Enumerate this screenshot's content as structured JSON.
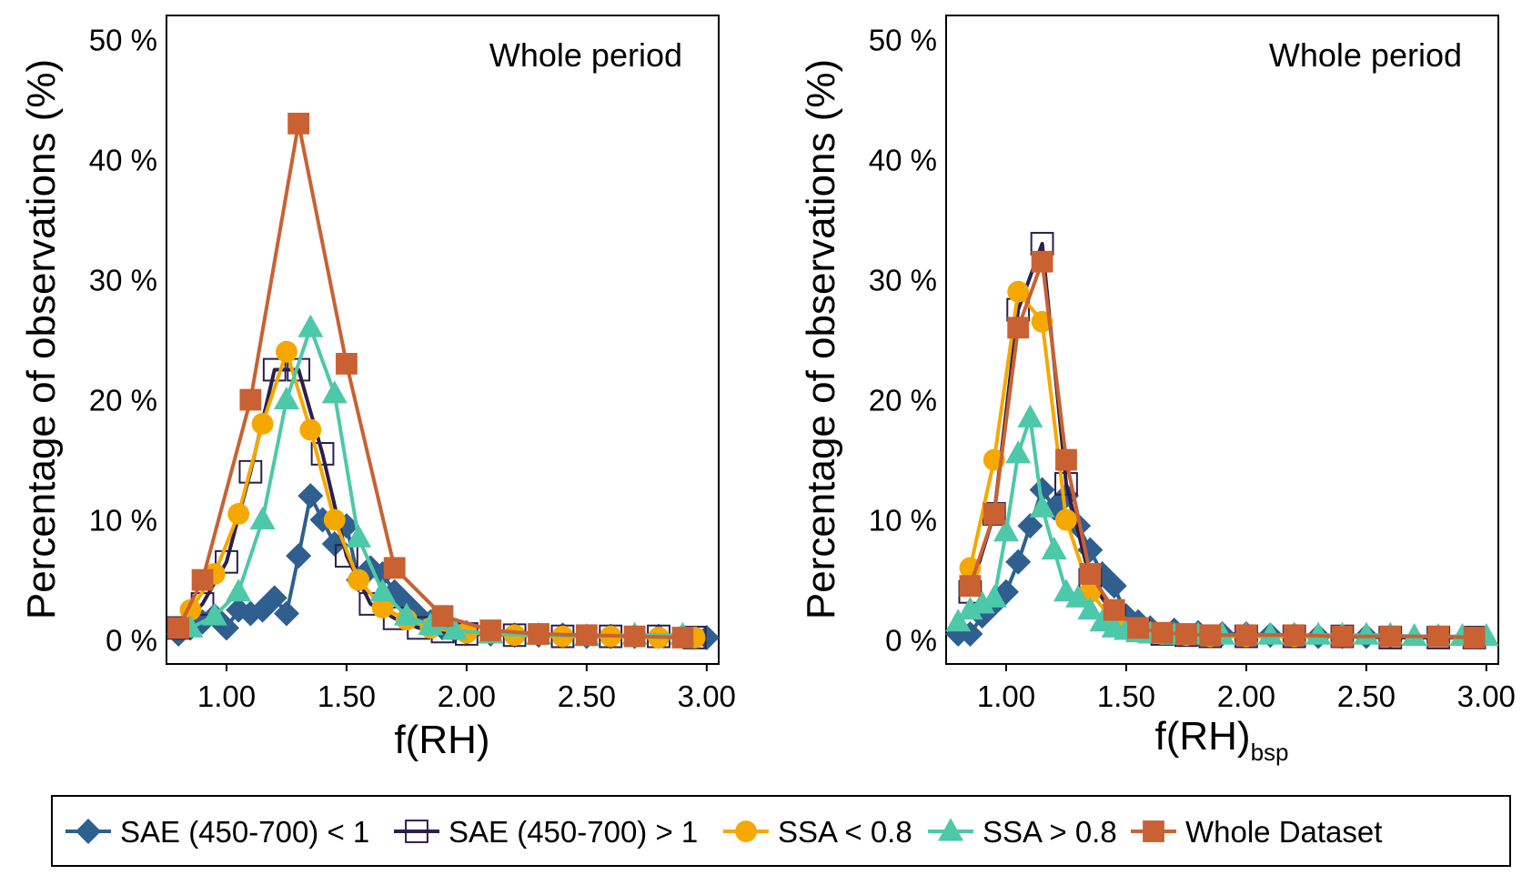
{
  "chart_data": [
    {
      "type": "line",
      "panel_label": "Whole period",
      "xlabel": "f(RH)",
      "xlabel_subscript": "",
      "ylabel": "Percentage of observations (%)",
      "xlim": [
        0.75,
        3.05
      ],
      "ylim": [
        -2,
        52
      ],
      "xticks": [
        1.0,
        1.5,
        2.0,
        2.5,
        3.0
      ],
      "xtick_labels": [
        "1.00",
        "1.50",
        "2.00",
        "2.50",
        "3.00"
      ],
      "yticks": [
        0,
        10,
        20,
        30,
        40,
        50
      ],
      "ytick_labels": [
        "0 %",
        "10 %",
        "20 %",
        "30 %",
        "40 %",
        "50 %"
      ],
      "series": [
        {
          "name": "SAE (450-700) < 1",
          "x": [
            0.8,
            0.85,
            0.9,
            0.95,
            1.0,
            1.05,
            1.1,
            1.15,
            1.2,
            1.25,
            1.3,
            1.35,
            1.4,
            1.45,
            1.5,
            1.55,
            1.6,
            1.65,
            1.7,
            1.75,
            1.8,
            1.85,
            1.9,
            1.95,
            2.0,
            2.1,
            2.2,
            2.3,
            2.4,
            2.5,
            2.6,
            2.7,
            2.8,
            2.9,
            3.0
          ],
          "y": [
            0.5,
            1.0,
            1.5,
            2.0,
            1.0,
            2.5,
            2.2,
            2.5,
            3.5,
            2.2,
            7.0,
            12.0,
            10.0,
            8.0,
            9.5,
            5.0,
            6.0,
            5.5,
            4.0,
            3.0,
            2.0,
            1.5,
            1.0,
            0.8,
            0.6,
            0.5,
            0.4,
            0.4,
            0.4,
            0.3,
            0.3,
            0.3,
            0.3,
            0.3,
            0.2
          ]
        },
        {
          "name": "SAE (450-700) > 1",
          "x": [
            0.8,
            0.9,
            1.0,
            1.1,
            1.2,
            1.3,
            1.4,
            1.5,
            1.6,
            1.7,
            1.8,
            1.9,
            2.0,
            2.2,
            2.4,
            2.6,
            2.8,
            2.95
          ],
          "y": [
            1.0,
            3.0,
            6.5,
            14.0,
            22.5,
            22.5,
            15.5,
            7.0,
            3.0,
            1.8,
            1.0,
            0.7,
            0.5,
            0.4,
            0.3,
            0.3,
            0.3,
            0.2
          ]
        },
        {
          "name": "SSA < 0.8",
          "x": [
            0.85,
            0.95,
            1.05,
            1.15,
            1.25,
            1.35,
            1.45,
            1.55,
            1.65,
            1.75,
            1.85,
            2.0,
            2.2,
            2.4,
            2.6,
            2.8,
            2.95
          ],
          "y": [
            2.5,
            5.5,
            10.5,
            18.0,
            24.0,
            17.5,
            10.0,
            5.0,
            2.7,
            1.7,
            1.0,
            0.6,
            0.4,
            0.3,
            0.3,
            0.2,
            0.2
          ]
        },
        {
          "name": "SSA > 0.8",
          "x": [
            0.85,
            0.95,
            1.05,
            1.15,
            1.25,
            1.35,
            1.45,
            1.55,
            1.65,
            1.75,
            1.85,
            1.95,
            2.1,
            2.3,
            2.5,
            2.7,
            2.9
          ],
          "y": [
            1.0,
            2.0,
            4.0,
            10.0,
            20.0,
            26.0,
            20.5,
            8.5,
            4.0,
            2.0,
            1.2,
            0.8,
            0.5,
            0.4,
            0.3,
            0.4,
            0.4
          ]
        },
        {
          "name": "Whole Dataset",
          "x": [
            0.8,
            0.9,
            1.1,
            1.3,
            1.5,
            1.7,
            1.9,
            2.1,
            2.3,
            2.5,
            2.7,
            2.9
          ],
          "y": [
            1.0,
            5.0,
            20.0,
            43.0,
            23.0,
            6.0,
            2.0,
            0.8,
            0.5,
            0.4,
            0.3,
            0.2
          ]
        }
      ]
    },
    {
      "type": "line",
      "panel_label": "Whole period",
      "xlabel": "f(RH)",
      "xlabel_subscript": "bsp",
      "ylabel": "Percentage of observations (%)",
      "xlim": [
        0.75,
        3.05
      ],
      "ylim": [
        -2,
        52
      ],
      "xticks": [
        1.0,
        1.5,
        2.0,
        2.5,
        3.0
      ],
      "xtick_labels": [
        "1.00",
        "1.50",
        "2.00",
        "2.50",
        "3.00"
      ],
      "yticks": [
        0,
        10,
        20,
        30,
        40,
        50
      ],
      "ytick_labels": [
        "0 %",
        "10 %",
        "20 %",
        "30 %",
        "40 %",
        "50 %"
      ],
      "series": [
        {
          "name": "SAE (450-700) < 1",
          "x": [
            0.8,
            0.85,
            0.9,
            0.95,
            1.0,
            1.05,
            1.1,
            1.15,
            1.2,
            1.25,
            1.3,
            1.35,
            1.4,
            1.45,
            1.5,
            1.55,
            1.6,
            1.7,
            1.8,
            1.9,
            2.0,
            2.1,
            2.2,
            2.3,
            2.4,
            2.5,
            2.6
          ],
          "y": [
            0.5,
            0.5,
            2.0,
            3.0,
            4.0,
            6.5,
            9.5,
            12.5,
            11.0,
            12.0,
            9.5,
            7.5,
            5.5,
            4.5,
            2.0,
            1.5,
            1.0,
            0.8,
            0.6,
            0.5,
            0.5,
            0.4,
            0.4,
            0.3,
            0.3,
            0.3,
            0.3
          ]
        },
        {
          "name": "SAE (450-700) > 1",
          "x": [
            0.85,
            0.95,
            1.05,
            1.15,
            1.25,
            1.35,
            1.45,
            1.55,
            1.65,
            1.75,
            1.85,
            2.0,
            2.2,
            2.4,
            2.6,
            2.8,
            2.95
          ],
          "y": [
            4.0,
            10.5,
            27.5,
            33.0,
            13.0,
            5.0,
            2.0,
            0.8,
            0.5,
            0.4,
            0.3,
            0.3,
            0.3,
            0.3,
            0.2,
            0.2,
            0.2
          ]
        },
        {
          "name": "SSA < 0.8",
          "x": [
            0.85,
            0.95,
            1.05,
            1.15,
            1.25,
            1.35,
            1.45,
            1.55,
            1.65,
            1.75,
            1.85,
            2.0,
            2.2,
            2.4,
            2.6,
            2.8,
            2.95
          ],
          "y": [
            6.0,
            15.0,
            29.0,
            26.5,
            10.0,
            4.0,
            1.5,
            0.8,
            0.5,
            0.4,
            0.3,
            0.3,
            0.3,
            0.3,
            0.3,
            0.3,
            0.2
          ]
        },
        {
          "name": "SSA > 0.8",
          "x": [
            0.8,
            0.85,
            0.9,
            0.95,
            1.0,
            1.05,
            1.1,
            1.15,
            1.2,
            1.25,
            1.3,
            1.35,
            1.4,
            1.45,
            1.5,
            1.55,
            1.6,
            1.7,
            1.8,
            1.9,
            2.0,
            2.1,
            2.2,
            2.3,
            2.4,
            2.5,
            2.6,
            2.7,
            2.8,
            2.9,
            3.0
          ],
          "y": [
            1.5,
            2.5,
            3.0,
            3.5,
            9.0,
            15.5,
            18.5,
            11.0,
            7.5,
            4.0,
            3.5,
            2.5,
            1.5,
            1.0,
            0.8,
            0.6,
            0.5,
            0.4,
            0.4,
            0.4,
            0.4,
            0.4,
            0.4,
            0.4,
            0.4,
            0.4,
            0.4,
            0.3,
            0.3,
            0.3,
            0.3
          ]
        },
        {
          "name": "Whole Dataset",
          "x": [
            0.85,
            0.95,
            1.05,
            1.15,
            1.25,
            1.35,
            1.45,
            1.55,
            1.65,
            1.75,
            1.85,
            2.0,
            2.2,
            2.4,
            2.6,
            2.8,
            2.95
          ],
          "y": [
            4.5,
            10.5,
            26.0,
            31.5,
            15.0,
            5.5,
            2.5,
            1.0,
            0.6,
            0.5,
            0.4,
            0.4,
            0.4,
            0.3,
            0.3,
            0.3,
            0.2
          ]
        }
      ]
    }
  ],
  "legend": {
    "placement": "bottom",
    "items": [
      {
        "label": "SAE (450-700) < 1",
        "color": "#2e5f8f",
        "marker": "diamond-icon"
      },
      {
        "label": "SAE (450-700) > 1",
        "color": "#2b1f4e",
        "marker": "open-square-icon"
      },
      {
        "label": "SSA < 0.8",
        "color": "#f5a800",
        "marker": "circle-icon"
      },
      {
        "label": "SSA > 0.8",
        "color": "#4dc8a8",
        "marker": "triangle-icon"
      },
      {
        "label": "Whole Dataset",
        "color": "#c96132",
        "marker": "square-icon"
      }
    ]
  },
  "series_styles": [
    {
      "color": "#2e5f8f",
      "marker": "diamond"
    },
    {
      "color": "#2b1f4e",
      "marker": "open-square"
    },
    {
      "color": "#f5a800",
      "marker": "circle"
    },
    {
      "color": "#4dc8a8",
      "marker": "triangle"
    },
    {
      "color": "#c96132",
      "marker": "square"
    }
  ]
}
